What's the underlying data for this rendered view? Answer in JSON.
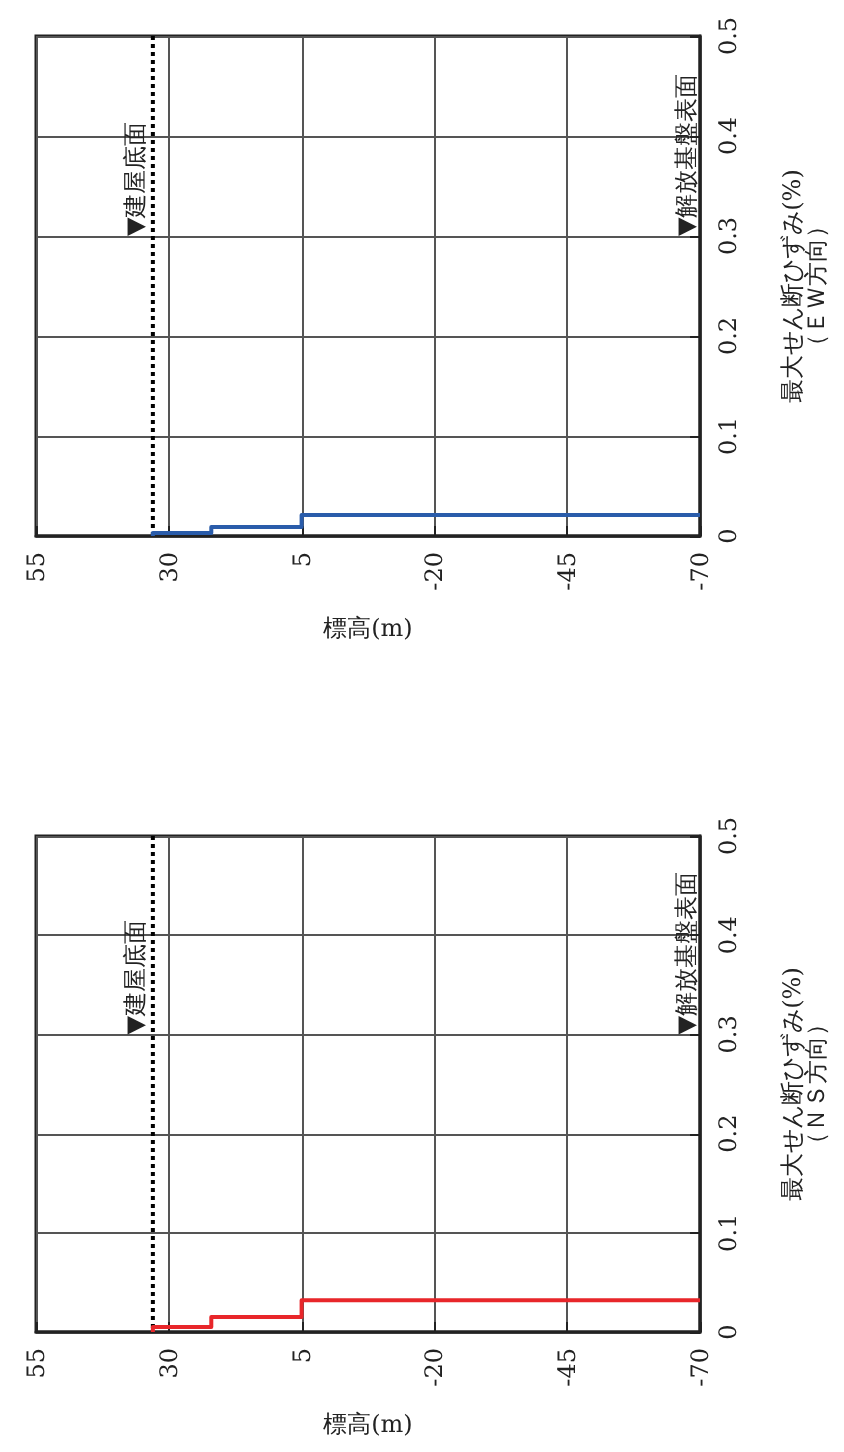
{
  "chart_data": [
    {
      "type": "line",
      "xlabel": "標高(m)",
      "ylabel": "最大せん断ひずみ(%)\n（ＥＷ方向）",
      "series": [
        {
          "color": "#2a5caa",
          "x": [
            33,
            33,
            22,
            22,
            5,
            5,
            -70
          ],
          "values": [
            0,
            0.003,
            0.003,
            0.009,
            0.009,
            0.021,
            0.021
          ]
        }
      ],
      "xlim": [
        55,
        -70
      ],
      "xticks": [
        55,
        30,
        5,
        -20,
        -45,
        -70
      ],
      "ylim": [
        0,
        0.5
      ],
      "yticks": [
        0,
        0.1,
        0.2,
        0.3,
        0.4,
        0.5
      ],
      "grid": true,
      "marker": "none",
      "ref_lines": [
        {
          "axis": "x",
          "value": 33,
          "label": "▼建屋底面",
          "line_style": "dotted",
          "color": "#000000"
        }
      ],
      "annotations": [
        "▼解放基盤表面"
      ]
    },
    {
      "type": "line",
      "xlabel": "標高(m)",
      "ylabel": "最大せん断ひずみ(%)\n（ＮＳ方向）",
      "series": [
        {
          "color": "#e8262a",
          "x": [
            33,
            33,
            22,
            22,
            5,
            5,
            -70
          ],
          "values": [
            0,
            0.005,
            0.005,
            0.015,
            0.015,
            0.032,
            0.032
          ]
        }
      ],
      "xlim": [
        55,
        -70
      ],
      "xticks": [
        55,
        30,
        5,
        -20,
        -45,
        -70
      ],
      "ylim": [
        0,
        0.5
      ],
      "yticks": [
        0,
        0.1,
        0.2,
        0.3,
        0.4,
        0.5
      ],
      "grid": true,
      "marker": "none",
      "ref_lines": [
        {
          "axis": "x",
          "value": 33,
          "label": "▼建屋底面",
          "line_style": "dotted",
          "color": "#000000"
        }
      ],
      "annotations": [
        "▼解放基盤表面"
      ]
    }
  ]
}
